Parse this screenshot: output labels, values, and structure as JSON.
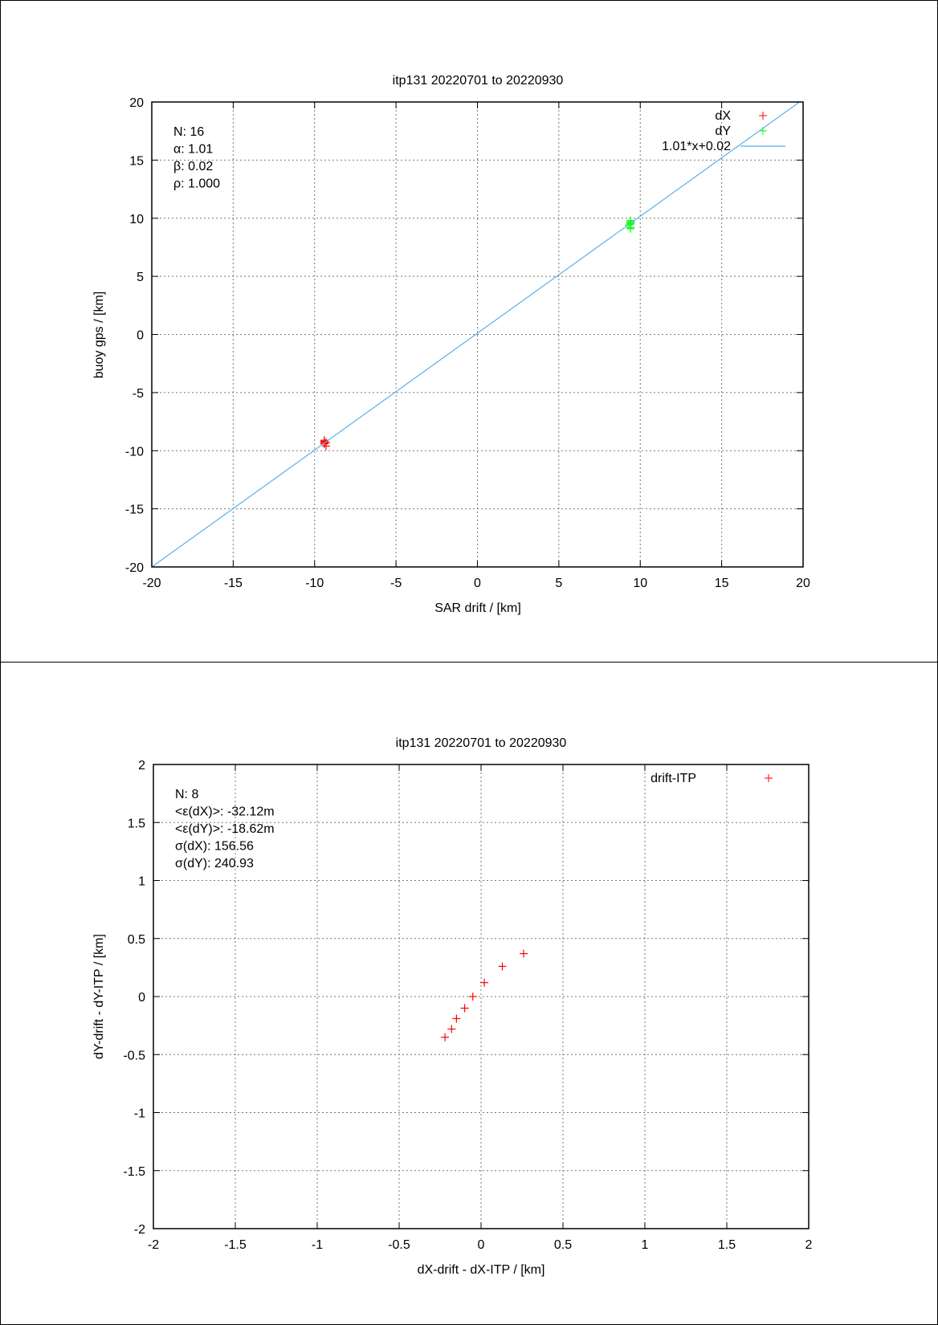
{
  "chart_data": [
    {
      "type": "scatter",
      "title": "itp131 20220701 to 20220930",
      "xlabel": "SAR drift / [km]",
      "ylabel": "buoy gps / [km]",
      "xlim": [
        -20,
        20
      ],
      "ylim": [
        -20,
        20
      ],
      "xticks": [
        -20,
        -15,
        -10,
        -5,
        0,
        5,
        10,
        15,
        20
      ],
      "yticks": [
        -20,
        -15,
        -10,
        -5,
        0,
        5,
        10,
        15,
        20
      ],
      "grid": true,
      "legend_position": "top-right",
      "annotations": [
        "N: 16",
        "α: 1.01",
        "β: 0.02",
        "ρ: 1.000"
      ],
      "series": [
        {
          "name": "dX",
          "color": "#ff0000",
          "marker": "+",
          "x": [
            -9.4,
            -9.4,
            -9.4,
            -9.4,
            -9.3,
            -9.4,
            -9.4,
            -9.3
          ],
          "y": [
            -9.1,
            -9.2,
            -9.2,
            -9.3,
            -9.3,
            -9.4,
            -9.4,
            -9.6
          ]
        },
        {
          "name": "dY",
          "color": "#00ff00",
          "marker": "+",
          "x": [
            9.4,
            9.4,
            9.4,
            9.4,
            9.4,
            9.3,
            9.4,
            9.4
          ],
          "y": [
            9.8,
            9.7,
            9.6,
            9.5,
            9.5,
            9.4,
            9.2,
            9.1
          ]
        },
        {
          "name": "1.01*x+0.02",
          "color": "#56b4e9",
          "type": "line",
          "slope": 1.01,
          "intercept": 0.02
        }
      ]
    },
    {
      "type": "scatter",
      "title": "itp131 20220701 to 20220930",
      "xlabel": "dX-drift - dX-ITP / [km]",
      "ylabel": "dY-drift - dY-ITP / [km]",
      "xlim": [
        -2,
        2
      ],
      "ylim": [
        -2,
        2
      ],
      "xticks": [
        -2,
        -1.5,
        -1,
        -0.5,
        0,
        0.5,
        1,
        1.5,
        2
      ],
      "yticks": [
        -2,
        -1.5,
        -1,
        -0.5,
        0,
        0.5,
        1,
        1.5,
        2
      ],
      "grid": true,
      "legend_position": "top-right",
      "annotations": [
        "N: 8",
        "<ε(dX)>:  -32.12m",
        "<ε(dY)>: -18.62m",
        "σ(dX):  156.56",
        "σ(dY):  240.93"
      ],
      "series": [
        {
          "name": "drift-ITP",
          "color": "#ff0000",
          "marker": "+",
          "x": [
            -0.22,
            -0.18,
            -0.15,
            -0.1,
            -0.05,
            0.02,
            0.13,
            0.26
          ],
          "y": [
            -0.35,
            -0.28,
            -0.19,
            -0.1,
            0.0,
            0.12,
            0.26,
            0.37
          ]
        }
      ]
    }
  ]
}
